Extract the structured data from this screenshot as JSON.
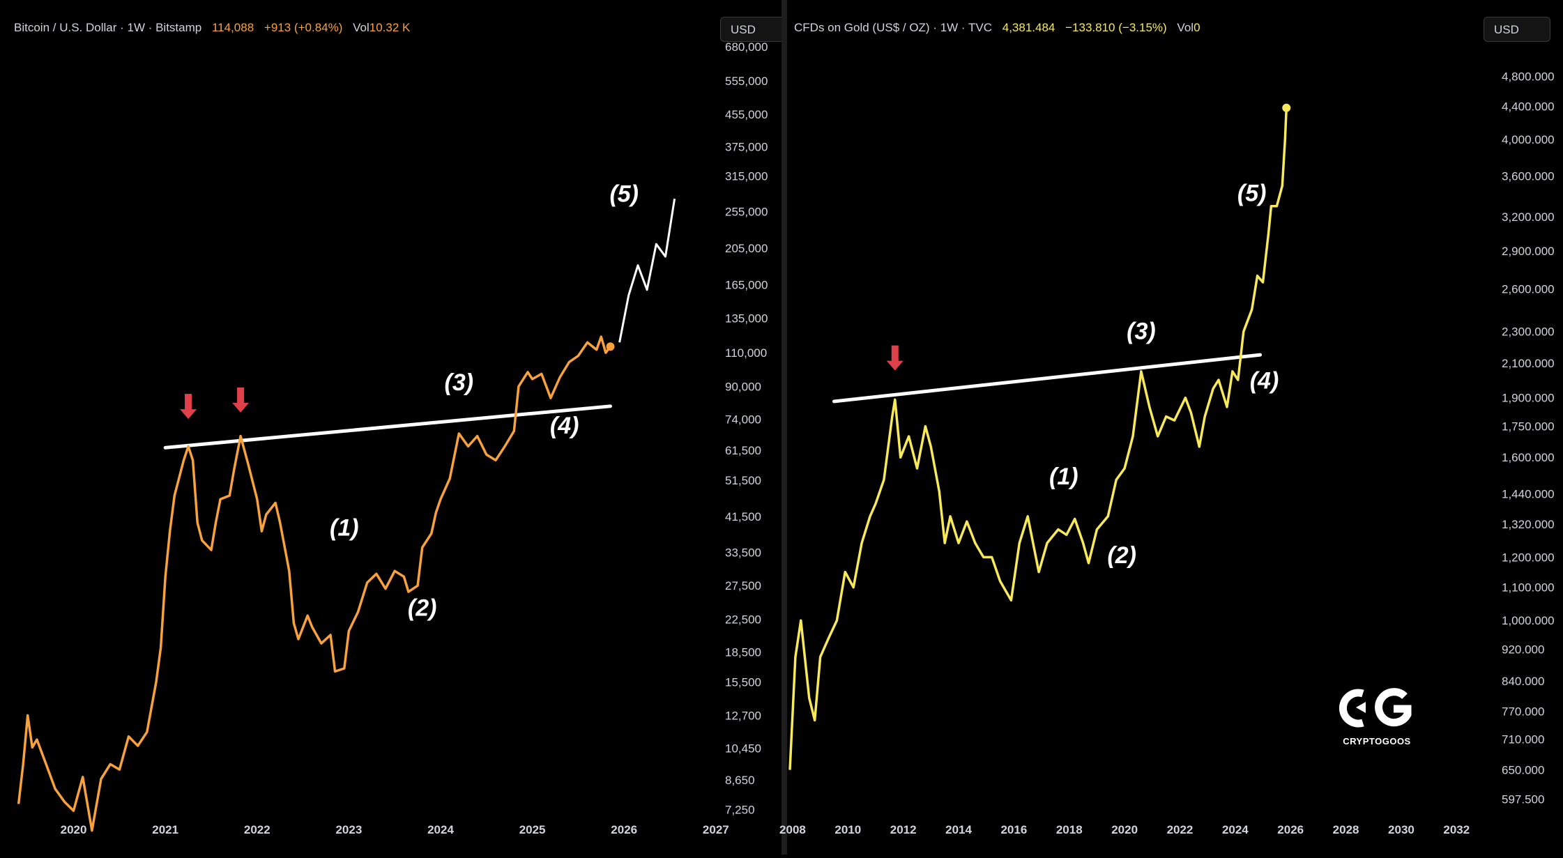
{
  "left": {
    "legend": {
      "symbol": "Bitcoin / U.S. Dollar · 1W · Bitstamp",
      "price": "114,088",
      "change": "+913 (+0.84%)",
      "vol_label": "Vol",
      "vol_value": "10.32 K"
    },
    "currency": "USD",
    "line_color": "#f7a23c",
    "chart_data": {
      "type": "line",
      "title": "Bitcoin / U.S. Dollar · 1W · Bitstamp",
      "x_ticks": [
        "2020",
        "2021",
        "2022",
        "2023",
        "2024",
        "2025",
        "2026",
        "2027"
      ],
      "y_ticks": [
        "680,000",
        "555,000",
        "455,000",
        "375,000",
        "315,000",
        "255,000",
        "205,000",
        "165,000",
        "135,000",
        "110,000",
        "90,000",
        "74,000",
        "61,500",
        "51,500",
        "41,500",
        "33,500",
        "27,500",
        "22,500",
        "18,500",
        "15,500",
        "12,700",
        "10,450",
        "8,650",
        "7,250"
      ],
      "xlim": [
        2019.35,
        2027.1
      ],
      "ylim_log": [
        7000,
        700000
      ],
      "series": [
        {
          "name": "BTCUSD",
          "points": [
            [
              2019.4,
              7500
            ],
            [
              2019.45,
              9500
            ],
            [
              2019.5,
              12700
            ],
            [
              2019.55,
              10500
            ],
            [
              2019.6,
              11000
            ],
            [
              2019.7,
              9500
            ],
            [
              2019.8,
              8200
            ],
            [
              2019.9,
              7600
            ],
            [
              2020.0,
              7200
            ],
            [
              2020.1,
              8800
            ],
            [
              2020.2,
              6400
            ],
            [
              2020.3,
              8700
            ],
            [
              2020.4,
              9500
            ],
            [
              2020.5,
              9200
            ],
            [
              2020.6,
              11200
            ],
            [
              2020.7,
              10600
            ],
            [
              2020.8,
              11500
            ],
            [
              2020.9,
              15500
            ],
            [
              2020.95,
              19000
            ],
            [
              2021.0,
              29000
            ],
            [
              2021.05,
              38000
            ],
            [
              2021.1,
              47000
            ],
            [
              2021.2,
              58000
            ],
            [
              2021.25,
              63000
            ],
            [
              2021.3,
              58000
            ],
            [
              2021.35,
              40000
            ],
            [
              2021.4,
              36000
            ],
            [
              2021.5,
              34000
            ],
            [
              2021.55,
              40000
            ],
            [
              2021.6,
              46000
            ],
            [
              2021.7,
              47000
            ],
            [
              2021.75,
              55000
            ],
            [
              2021.82,
              67000
            ],
            [
              2021.9,
              57000
            ],
            [
              2022.0,
              46000
            ],
            [
              2022.05,
              38000
            ],
            [
              2022.1,
              42000
            ],
            [
              2022.2,
              45000
            ],
            [
              2022.25,
              40000
            ],
            [
              2022.35,
              30000
            ],
            [
              2022.4,
              22000
            ],
            [
              2022.45,
              20000
            ],
            [
              2022.55,
              23000
            ],
            [
              2022.6,
              21500
            ],
            [
              2022.7,
              19500
            ],
            [
              2022.8,
              20500
            ],
            [
              2022.85,
              16500
            ],
            [
              2022.95,
              16800
            ],
            [
              2023.0,
              21000
            ],
            [
              2023.1,
              23500
            ],
            [
              2023.2,
              28000
            ],
            [
              2023.3,
              29500
            ],
            [
              2023.4,
              27000
            ],
            [
              2023.5,
              30000
            ],
            [
              2023.6,
              29000
            ],
            [
              2023.65,
              26500
            ],
            [
              2023.75,
              27500
            ],
            [
              2023.8,
              34500
            ],
            [
              2023.9,
              37500
            ],
            [
              2023.95,
              42500
            ],
            [
              2024.0,
              46000
            ],
            [
              2024.1,
              52000
            ],
            [
              2024.2,
              68000
            ],
            [
              2024.3,
              63000
            ],
            [
              2024.4,
              67000
            ],
            [
              2024.5,
              60000
            ],
            [
              2024.6,
              58000
            ],
            [
              2024.7,
              63000
            ],
            [
              2024.8,
              69000
            ],
            [
              2024.85,
              90000
            ],
            [
              2024.95,
              98000
            ],
            [
              2025.0,
              94000
            ],
            [
              2025.1,
              97000
            ],
            [
              2025.2,
              84000
            ],
            [
              2025.3,
              95000
            ],
            [
              2025.4,
              104000
            ],
            [
              2025.5,
              108000
            ],
            [
              2025.6,
              117000
            ],
            [
              2025.7,
              112000
            ],
            [
              2025.75,
              121000
            ],
            [
              2025.8,
              110000
            ],
            [
              2025.85,
              114088
            ]
          ]
        },
        {
          "name": "Projection",
          "points": [
            [
              2025.95,
              117000
            ],
            [
              2026.05,
              155000
            ],
            [
              2026.15,
              185000
            ],
            [
              2026.25,
              160000
            ],
            [
              2026.35,
              210000
            ],
            [
              2026.45,
              195000
            ],
            [
              2026.55,
              275000
            ]
          ]
        }
      ],
      "trendline": [
        [
          2021.0,
          62500
        ],
        [
          2025.85,
          80000
        ]
      ],
      "arrows": [
        [
          2021.25,
          76000
        ],
        [
          2021.82,
          79000
        ]
      ],
      "annotations": [
        {
          "label": "(1)",
          "x": 2022.95,
          "y": 37000
        },
        {
          "label": "(2)",
          "x": 2023.8,
          "y": 23000
        },
        {
          "label": "(3)",
          "x": 2024.2,
          "y": 88000
        },
        {
          "label": "(4)",
          "x": 2025.35,
          "y": 68000
        },
        {
          "label": "(5)",
          "x": 2026.0,
          "y": 270000
        }
      ],
      "last_point_color": "#f7a23c"
    }
  },
  "right": {
    "legend": {
      "symbol": "CFDs on Gold (US$ / OZ) · 1W · TVC",
      "price": "4,381.484",
      "change": "−133.810 (−3.15%)",
      "vol_label": "Vol",
      "vol_value": "0"
    },
    "currency": "USD",
    "line_color": "#f7e95a",
    "chart_data": {
      "type": "line",
      "title": "CFDs on Gold (US$ / OZ) · 1W · TVC",
      "x_ticks": [
        "2008",
        "2010",
        "2012",
        "2014",
        "2016",
        "2018",
        "2020",
        "2022",
        "2024",
        "2026",
        "2028",
        "2030",
        "2032"
      ],
      "y_ticks": [
        "4,800.000",
        "4,400.000",
        "4,000.000",
        "3,600.000",
        "3,200.000",
        "2,900.000",
        "2,600.000",
        "2,300.000",
        "2,100.000",
        "1,900.000",
        "1,750.000",
        "1,600.000",
        "1,440.000",
        "1,320.000",
        "1,200.000",
        "1,100.000",
        "1,000.000",
        "920.000",
        "840.000",
        "770.000",
        "710.000",
        "650.000",
        "597.500"
      ],
      "xlim": [
        2007.8,
        2033.0
      ],
      "ylim_log": [
        570,
        5300
      ],
      "series": [
        {
          "name": "XAUUSD",
          "points": [
            [
              2007.9,
              650
            ],
            [
              2008.1,
              900
            ],
            [
              2008.3,
              1000
            ],
            [
              2008.6,
              800
            ],
            [
              2008.8,
              750
            ],
            [
              2009.0,
              900
            ],
            [
              2009.3,
              950
            ],
            [
              2009.6,
              1000
            ],
            [
              2009.9,
              1150
            ],
            [
              2010.2,
              1100
            ],
            [
              2010.5,
              1250
            ],
            [
              2010.8,
              1350
            ],
            [
              2011.0,
              1400
            ],
            [
              2011.3,
              1500
            ],
            [
              2011.6,
              1800
            ],
            [
              2011.7,
              1890
            ],
            [
              2011.9,
              1600
            ],
            [
              2012.2,
              1700
            ],
            [
              2012.5,
              1550
            ],
            [
              2012.8,
              1750
            ],
            [
              2013.0,
              1650
            ],
            [
              2013.3,
              1450
            ],
            [
              2013.5,
              1250
            ],
            [
              2013.7,
              1350
            ],
            [
              2014.0,
              1250
            ],
            [
              2014.3,
              1330
            ],
            [
              2014.6,
              1250
            ],
            [
              2014.9,
              1200
            ],
            [
              2015.2,
              1200
            ],
            [
              2015.5,
              1120
            ],
            [
              2015.9,
              1060
            ],
            [
              2016.2,
              1250
            ],
            [
              2016.5,
              1350
            ],
            [
              2016.9,
              1150
            ],
            [
              2017.2,
              1250
            ],
            [
              2017.6,
              1300
            ],
            [
              2017.9,
              1280
            ],
            [
              2018.2,
              1340
            ],
            [
              2018.5,
              1250
            ],
            [
              2018.7,
              1180
            ],
            [
              2019.0,
              1300
            ],
            [
              2019.4,
              1350
            ],
            [
              2019.7,
              1500
            ],
            [
              2020.0,
              1550
            ],
            [
              2020.3,
              1700
            ],
            [
              2020.6,
              2050
            ],
            [
              2020.9,
              1850
            ],
            [
              2021.2,
              1700
            ],
            [
              2021.5,
              1800
            ],
            [
              2021.8,
              1780
            ],
            [
              2022.2,
              1900
            ],
            [
              2022.4,
              1820
            ],
            [
              2022.7,
              1650
            ],
            [
              2022.9,
              1800
            ],
            [
              2023.2,
              1950
            ],
            [
              2023.4,
              2000
            ],
            [
              2023.7,
              1850
            ],
            [
              2023.9,
              2050
            ],
            [
              2024.1,
              2000
            ],
            [
              2024.3,
              2300
            ],
            [
              2024.6,
              2450
            ],
            [
              2024.8,
              2700
            ],
            [
              2025.0,
              2650
            ],
            [
              2025.2,
              3050
            ],
            [
              2025.3,
              3300
            ],
            [
              2025.5,
              3300
            ],
            [
              2025.7,
              3500
            ],
            [
              2025.8,
              4000
            ],
            [
              2025.85,
              4381.484
            ]
          ]
        }
      ],
      "trendline": [
        [
          2009.5,
          1880
        ],
        [
          2024.9,
          2150
        ]
      ],
      "arrows": [
        [
          2011.7,
          2080
        ]
      ],
      "annotations": [
        {
          "label": "(1)",
          "x": 2017.8,
          "y": 1480
        },
        {
          "label": "(2)",
          "x": 2019.9,
          "y": 1180
        },
        {
          "label": "(3)",
          "x": 2020.6,
          "y": 2250
        },
        {
          "label": "(4)",
          "x": 2025.05,
          "y": 1950
        },
        {
          "label": "(5)",
          "x": 2024.6,
          "y": 3350
        }
      ],
      "last_point_color": "#f7e95a"
    }
  },
  "logo": {
    "text": "CRYPTOGOOS",
    "mark": "CG"
  }
}
